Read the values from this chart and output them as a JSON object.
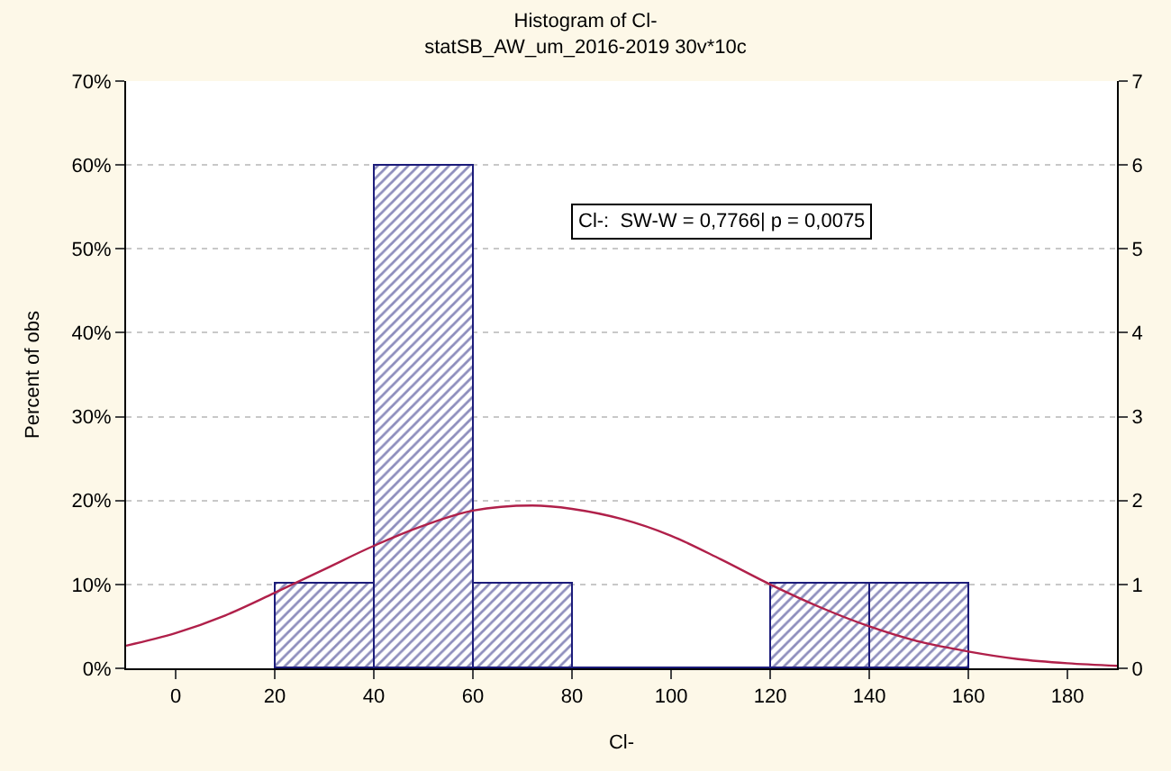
{
  "chart_data": {
    "type": "histogram",
    "title": "Histogram of Cl-",
    "subtitle": "statSB_AW_um_2016-2019 30v*10c",
    "xlabel": "Cl-",
    "ylabel": "Percent of obs",
    "bins": [
      20,
      40,
      60,
      80,
      100,
      120,
      140,
      160
    ],
    "values": [
      10,
      60,
      10,
      0,
      0,
      10,
      10
    ],
    "color": "#1c1c7a",
    "series": [
      {
        "type": "line",
        "color": "#b0204a",
        "x": [
          -10,
          0,
          10,
          20,
          30,
          40,
          50,
          60,
          72,
          80,
          90,
          100,
          110,
          120,
          130,
          140,
          150,
          160,
          170,
          180,
          190
        ],
        "values": [
          2.7,
          4.2,
          6.3,
          9,
          11.8,
          14.6,
          17,
          18.8,
          19.4,
          19,
          17.8,
          15.8,
          13,
          10,
          7.3,
          5,
          3.2,
          2,
          1.1,
          0.6,
          0.3
        ]
      }
    ],
    "xlim": [
      -10,
      190
    ],
    "xticks": [
      0,
      20,
      40,
      60,
      80,
      100,
      120,
      140,
      160,
      180
    ],
    "ylim": [
      0,
      70
    ],
    "yticks": [
      {
        "value": 0,
        "label": "0%"
      },
      {
        "value": 10,
        "label": "10%"
      },
      {
        "value": 20,
        "label": "20%"
      },
      {
        "value": 30,
        "label": "30%"
      },
      {
        "value": 40,
        "label": "40%"
      },
      {
        "value": 50,
        "label": "50%"
      },
      {
        "value": 60,
        "label": "60%"
      },
      {
        "value": 70,
        "label": "70%"
      }
    ],
    "y2lim": [
      0,
      7
    ],
    "y2ticks": [
      0,
      1,
      2,
      3,
      4,
      5,
      6,
      7
    ],
    "grid": "y",
    "annotations": [
      "Cl-:  SW-W = 0,7766| p = 0,0075"
    ]
  }
}
